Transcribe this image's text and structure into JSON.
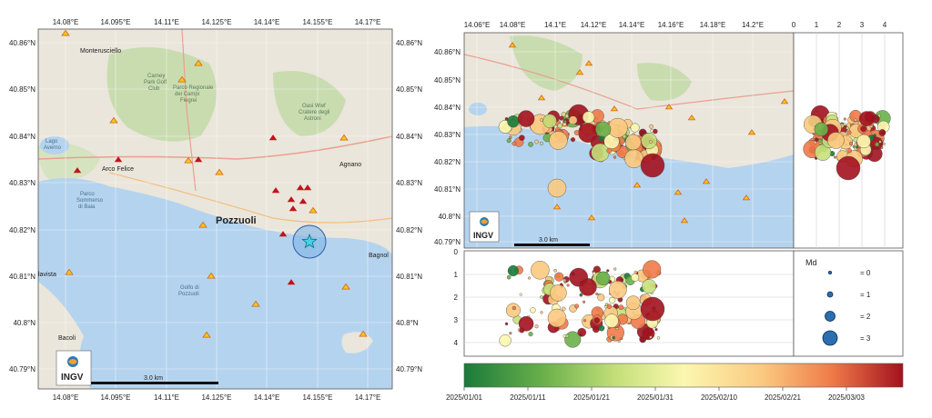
{
  "left_map": {
    "lon_ticks": [
      "14.08°E",
      "14.095°E",
      "14.11°E",
      "14.125°E",
      "14.14°E",
      "14.155°E",
      "14.17°E"
    ],
    "lat_ticks": [
      "40.86°N",
      "40.85°N",
      "40.84°N",
      "40.83°N",
      "40.82°N",
      "40.81°N",
      "40.8°N",
      "40.79°N"
    ],
    "places": {
      "monterusciello": "Monterusciello",
      "arco_felice": "Arco Felice",
      "pozzuoli": "Pozzuoli",
      "agnano": "Agnano",
      "bagnoli": "Bagnol",
      "lago_averno": "Lago\nAverno",
      "licola": "lavista",
      "bacoli": "Bacoli",
      "parco_sommerso": "Parco\nSommerso\ndi Baia",
      "golfo": "Golfo di\nPozzuoli",
      "parco_campi": "Parco Regionale\ndei Campi\nFlegrei",
      "oasi": "Oasi Wwf\nCratere degli\nAstroni",
      "carney": "Carney\nPark Golf\nClub"
    },
    "scalebar_label": "3.0 km",
    "logo": "INGV",
    "epicenter": {
      "lon": 14.1525,
      "lat": 40.8175
    }
  },
  "right_map": {
    "lon_ticks": [
      "14.06°E",
      "14.08°E",
      "14.1°E",
      "14.12°E",
      "14.14°E",
      "14.16°E",
      "14.18°E",
      "14.2°E"
    ],
    "lat_ticks": [
      "40.86°N",
      "40.85°N",
      "40.84°N",
      "40.83°N",
      "40.82°N",
      "40.81°N",
      "40.8°N",
      "40.79°N"
    ],
    "depth_ticks_top": [
      "0",
      "1",
      "2",
      "3",
      "4"
    ],
    "depth_ticks_left": [
      "0",
      "1",
      "2",
      "3",
      "4"
    ],
    "scalebar_label": "3.0 km",
    "logo": "INGV"
  },
  "legend": {
    "title": "Md",
    "items": [
      {
        "label": "= 0",
        "md": 0
      },
      {
        "label": "= 1",
        "md": 1
      },
      {
        "label": "= 2",
        "md": 2
      },
      {
        "label": "= 3",
        "md": 3
      }
    ]
  },
  "colorbar": {
    "labels": [
      "2025/01/01",
      "2025/01/11",
      "2025/01/21",
      "2025/01/31",
      "2025/02/10",
      "2025/02/21",
      "2025/03/03"
    ],
    "colors": [
      "#1a7a3a",
      "#6ab04a",
      "#c6e07a",
      "#fbf7b0",
      "#fbc980",
      "#ef7a48",
      "#a3111e"
    ]
  },
  "colors": {
    "sea": "#b4d3ee",
    "land": "#eae6db",
    "vegetation": "#c9dcb0",
    "station_fill": "#f5c518",
    "station_stroke": "#d9621e",
    "event_red": "#b3131b",
    "epicenter": "#45d0e8"
  }
}
